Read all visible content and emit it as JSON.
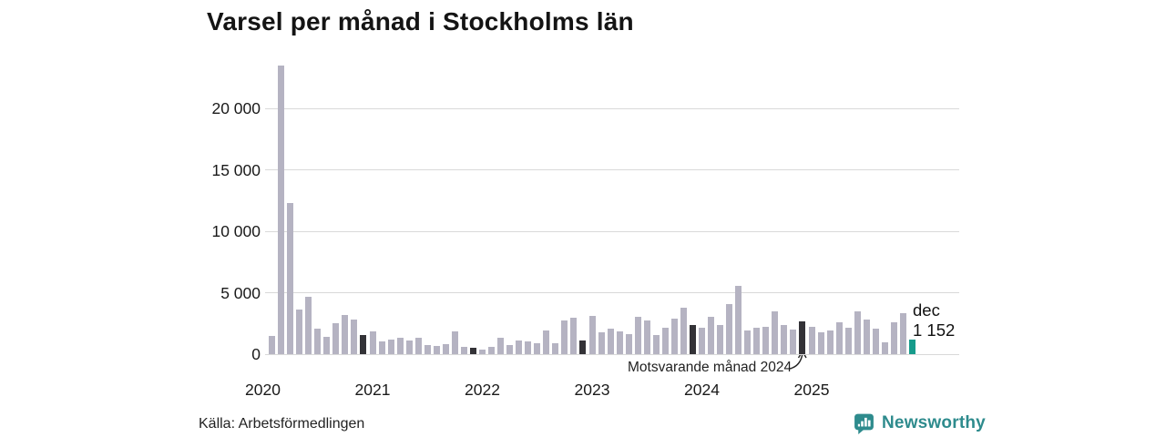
{
  "title": "Varsel per månad i Stockholms län",
  "source": "Källa: Arbetsförmedlingen",
  "branding": {
    "name": "Newsworthy",
    "icon": "newsworthy-bar-chart-bubble-icon",
    "color": "#2e8b8d"
  },
  "annotation": {
    "text": "Motsvarande månad 2024",
    "points_to_month": "2024-12"
  },
  "latest_point_label": {
    "month": "dec",
    "value_text": "1 152"
  },
  "colors": {
    "bar_regular": "#b5b3c2",
    "bar_december_compare": "#333237",
    "bar_latest": "#169b8b",
    "gridline": "#d9d9d9",
    "text": "#1a1a1a"
  },
  "chart_data": {
    "type": "bar",
    "title": "Varsel per månad i Stockholms län",
    "xlabel": "",
    "ylabel": "",
    "ylim": [
      0,
      24200
    ],
    "y_ticks": [
      0,
      5000,
      10000,
      15000,
      20000
    ],
    "y_tick_labels": [
      "0",
      "5 000",
      "10 000",
      "15 000",
      "20 000"
    ],
    "x_tick_labels": [
      "2020",
      "2021",
      "2022",
      "2023",
      "2024",
      "2025"
    ],
    "grid": "horizontal",
    "legend_position": "none",
    "style_legend": {
      "regular": "light gray bar",
      "dec": "dark bar marking December of earlier years (Motsvarande månad 2024 points at 2024-12)",
      "latest": "teal highlighted latest month (dec 2025 = 1 152)"
    },
    "points": [
      {
        "month": "2020-02",
        "value": 1500,
        "style": "regular"
      },
      {
        "month": "2020-03",
        "value": 23500,
        "style": "regular"
      },
      {
        "month": "2020-04",
        "value": 12300,
        "style": "regular"
      },
      {
        "month": "2020-05",
        "value": 3650,
        "style": "regular"
      },
      {
        "month": "2020-06",
        "value": 4700,
        "style": "regular"
      },
      {
        "month": "2020-07",
        "value": 2100,
        "style": "regular"
      },
      {
        "month": "2020-08",
        "value": 1400,
        "style": "regular"
      },
      {
        "month": "2020-09",
        "value": 2500,
        "style": "regular"
      },
      {
        "month": "2020-10",
        "value": 3200,
        "style": "regular"
      },
      {
        "month": "2020-11",
        "value": 2800,
        "style": "regular"
      },
      {
        "month": "2020-12",
        "value": 1550,
        "style": "dec"
      },
      {
        "month": "2021-01",
        "value": 1850,
        "style": "regular"
      },
      {
        "month": "2021-02",
        "value": 1050,
        "style": "regular"
      },
      {
        "month": "2021-03",
        "value": 1200,
        "style": "regular"
      },
      {
        "month": "2021-04",
        "value": 1300,
        "style": "regular"
      },
      {
        "month": "2021-05",
        "value": 1100,
        "style": "regular"
      },
      {
        "month": "2021-06",
        "value": 1300,
        "style": "regular"
      },
      {
        "month": "2021-07",
        "value": 720,
        "style": "regular"
      },
      {
        "month": "2021-08",
        "value": 670,
        "style": "regular"
      },
      {
        "month": "2021-09",
        "value": 800,
        "style": "regular"
      },
      {
        "month": "2021-10",
        "value": 1850,
        "style": "regular"
      },
      {
        "month": "2021-11",
        "value": 600,
        "style": "regular"
      },
      {
        "month": "2021-12",
        "value": 500,
        "style": "dec"
      },
      {
        "month": "2022-01",
        "value": 400,
        "style": "regular"
      },
      {
        "month": "2022-02",
        "value": 620,
        "style": "regular"
      },
      {
        "month": "2022-03",
        "value": 1300,
        "style": "regular"
      },
      {
        "month": "2022-04",
        "value": 720,
        "style": "regular"
      },
      {
        "month": "2022-05",
        "value": 1150,
        "style": "regular"
      },
      {
        "month": "2022-06",
        "value": 1050,
        "style": "regular"
      },
      {
        "month": "2022-07",
        "value": 900,
        "style": "regular"
      },
      {
        "month": "2022-08",
        "value": 1950,
        "style": "regular"
      },
      {
        "month": "2022-09",
        "value": 870,
        "style": "regular"
      },
      {
        "month": "2022-10",
        "value": 2750,
        "style": "regular"
      },
      {
        "month": "2022-11",
        "value": 2950,
        "style": "regular"
      },
      {
        "month": "2022-12",
        "value": 1150,
        "style": "dec"
      },
      {
        "month": "2023-01",
        "value": 3150,
        "style": "regular"
      },
      {
        "month": "2023-02",
        "value": 1800,
        "style": "regular"
      },
      {
        "month": "2023-03",
        "value": 2050,
        "style": "regular"
      },
      {
        "month": "2023-04",
        "value": 1850,
        "style": "regular"
      },
      {
        "month": "2023-05",
        "value": 1600,
        "style": "regular"
      },
      {
        "month": "2023-06",
        "value": 3050,
        "style": "regular"
      },
      {
        "month": "2023-07",
        "value": 2750,
        "style": "regular"
      },
      {
        "month": "2023-08",
        "value": 1550,
        "style": "regular"
      },
      {
        "month": "2023-09",
        "value": 2150,
        "style": "regular"
      },
      {
        "month": "2023-10",
        "value": 2900,
        "style": "regular"
      },
      {
        "month": "2023-11",
        "value": 3800,
        "style": "regular"
      },
      {
        "month": "2023-12",
        "value": 2350,
        "style": "dec"
      },
      {
        "month": "2024-01",
        "value": 2150,
        "style": "regular"
      },
      {
        "month": "2024-02",
        "value": 3050,
        "style": "regular"
      },
      {
        "month": "2024-03",
        "value": 2400,
        "style": "regular"
      },
      {
        "month": "2024-04",
        "value": 4100,
        "style": "regular"
      },
      {
        "month": "2024-05",
        "value": 5550,
        "style": "regular"
      },
      {
        "month": "2024-06",
        "value": 1900,
        "style": "regular"
      },
      {
        "month": "2024-07",
        "value": 2150,
        "style": "regular"
      },
      {
        "month": "2024-08",
        "value": 2200,
        "style": "regular"
      },
      {
        "month": "2024-09",
        "value": 3450,
        "style": "regular"
      },
      {
        "month": "2024-10",
        "value": 2400,
        "style": "regular"
      },
      {
        "month": "2024-11",
        "value": 2000,
        "style": "regular"
      },
      {
        "month": "2024-12",
        "value": 2650,
        "style": "dec"
      },
      {
        "month": "2025-01",
        "value": 2200,
        "style": "regular"
      },
      {
        "month": "2025-02",
        "value": 1750,
        "style": "regular"
      },
      {
        "month": "2025-03",
        "value": 1950,
        "style": "regular"
      },
      {
        "month": "2025-04",
        "value": 2600,
        "style": "regular"
      },
      {
        "month": "2025-05",
        "value": 2150,
        "style": "regular"
      },
      {
        "month": "2025-06",
        "value": 3500,
        "style": "regular"
      },
      {
        "month": "2025-07",
        "value": 2850,
        "style": "regular"
      },
      {
        "month": "2025-08",
        "value": 2050,
        "style": "regular"
      },
      {
        "month": "2025-09",
        "value": 950,
        "style": "regular"
      },
      {
        "month": "2025-10",
        "value": 2600,
        "style": "regular"
      },
      {
        "month": "2025-11",
        "value": 3300,
        "style": "regular"
      },
      {
        "month": "2025-12",
        "value": 1152,
        "style": "latest"
      }
    ]
  }
}
